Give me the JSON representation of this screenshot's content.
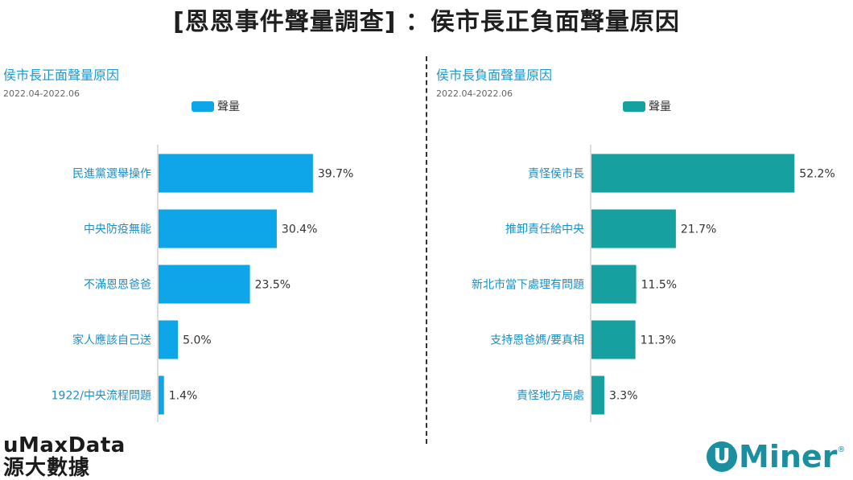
{
  "title": "[恩恩事件聲量調查] ：侯市長正負面聲量原因",
  "chart_data": [
    {
      "type": "bar",
      "orientation": "horizontal",
      "title": "侯市長正面聲量原因",
      "subtitle": "2022.04-2022.06",
      "legend": {
        "label": "聲量",
        "placement": "top"
      },
      "color": "#0ea5e9",
      "categories": [
        "民進黨選舉操作",
        "中央防疫無能",
        "不滿恩恩爸爸",
        "家人應該自己送",
        "1922/中央流程問題"
      ],
      "values": [
        39.7,
        30.4,
        23.5,
        5.0,
        1.4
      ],
      "data_labels": [
        "39.7%",
        "30.4%",
        "23.5%",
        "5.0%",
        "1.4%"
      ],
      "xlim": [
        0,
        60
      ]
    },
    {
      "type": "bar",
      "orientation": "horizontal",
      "title": "侯市長負面聲量原因",
      "subtitle": "2022.04-2022.06",
      "legend": {
        "label": "聲量",
        "placement": "top"
      },
      "color": "#16a0a0",
      "categories": [
        "責怪侯市長",
        "推卸責任給中央",
        "新北市當下處理有問題",
        "支持恩爸媽/要真相",
        "責怪地方局處"
      ],
      "values": [
        52.2,
        21.7,
        11.5,
        11.3,
        3.3
      ],
      "data_labels": [
        "52.2%",
        "21.7%",
        "11.5%",
        "11.3%",
        "3.3%"
      ],
      "xlim": [
        0,
        60
      ]
    }
  ],
  "logos": {
    "left_line1": "uMaxData",
    "left_line2": "源大數據",
    "right_mark": "U",
    "right_text": "Miner",
    "right_reg": "®"
  }
}
